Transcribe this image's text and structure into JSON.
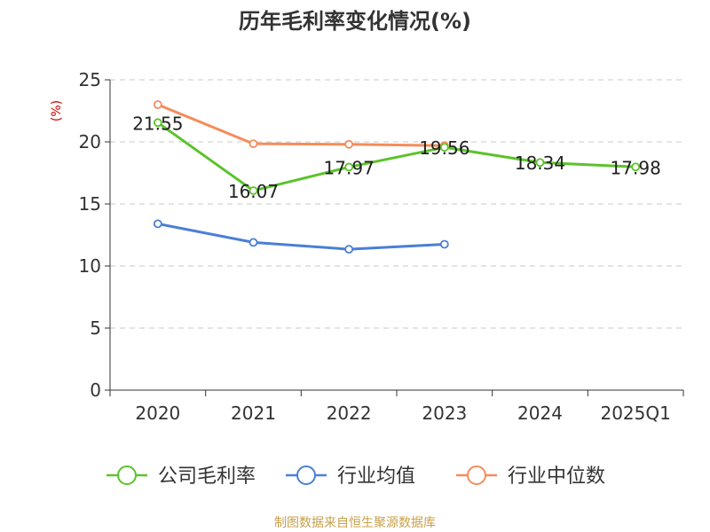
{
  "chart_data": {
    "type": "line",
    "title": "历年毛利率变化情况(%)",
    "y_unit_label": "(%)",
    "categories": [
      "2020",
      "2021",
      "2022",
      "2023",
      "2024",
      "2025Q1"
    ],
    "ylim": [
      0,
      25
    ],
    "yticks": [
      0,
      5,
      10,
      15,
      20,
      25
    ],
    "grid": true,
    "legend_position": "bottom",
    "series": [
      {
        "name": "公司毛利率",
        "color": "#5bc32a",
        "values": [
          21.55,
          16.07,
          17.97,
          19.56,
          18.34,
          17.98
        ],
        "data_labels": [
          "21.55",
          "16.07",
          "17.97",
          "19.56",
          "18.34",
          "17.98"
        ]
      },
      {
        "name": "行业均值",
        "color": "#4a7fd6",
        "values": [
          13.4,
          11.9,
          11.35,
          11.75,
          null,
          null
        ],
        "data_labels": null
      },
      {
        "name": "行业中位数",
        "color": "#f58c5a",
        "values": [
          23.0,
          19.85,
          19.8,
          19.7,
          null,
          null
        ],
        "data_labels": null
      }
    ]
  },
  "colors": {
    "unit_label": "#cc0000",
    "source_text": "#c8a04a",
    "axis": "#333333",
    "grid": "#c8c8c8"
  },
  "source": "制图数据来自恒生聚源数据库"
}
